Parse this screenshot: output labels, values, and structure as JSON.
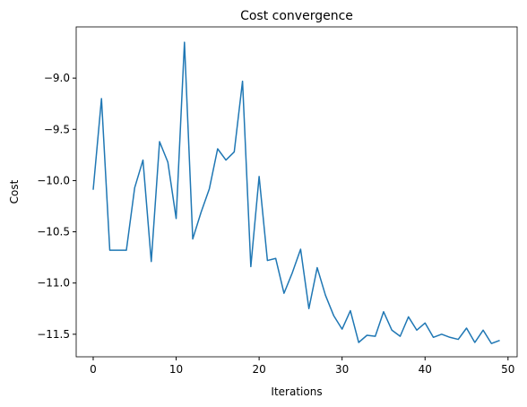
{
  "chart_data": {
    "type": "line",
    "title": "Cost convergence",
    "x_label": "Iterations",
    "y_label": "Cost",
    "x": [
      0,
      1,
      2,
      3,
      4,
      5,
      6,
      7,
      8,
      9,
      10,
      11,
      12,
      13,
      14,
      15,
      16,
      17,
      18,
      19,
      20,
      21,
      22,
      23,
      24,
      25,
      26,
      27,
      28,
      29,
      30,
      31,
      32,
      33,
      34,
      35,
      36,
      37,
      38,
      39,
      40,
      41,
      42,
      43,
      44,
      45,
      46,
      47,
      48,
      49
    ],
    "series": [
      {
        "name": "Cost",
        "color": "#1f77b4",
        "values": [
          -10.09,
          -9.2,
          -10.68,
          -10.68,
          -10.68,
          -10.07,
          -9.8,
          -10.79,
          -9.62,
          -9.82,
          -10.37,
          -8.65,
          -10.57,
          -10.31,
          -10.08,
          -9.69,
          -9.8,
          -9.72,
          -9.03,
          -10.84,
          -9.96,
          -10.78,
          -10.76,
          -11.1,
          -10.9,
          -10.67,
          -11.25,
          -10.85,
          -11.12,
          -11.32,
          -11.45,
          -11.27,
          -11.58,
          -11.51,
          -11.52,
          -11.28,
          -11.46,
          -11.52,
          -11.33,
          -11.46,
          -11.39,
          -11.53,
          -11.5,
          -11.53,
          -11.55,
          -11.44,
          -11.58,
          -11.46,
          -11.59,
          -11.56
        ]
      }
    ],
    "xlim": [
      -2.05,
      51.1
    ],
    "ylim": [
      -11.72,
      -8.5
    ],
    "xticks": [
      0,
      10,
      20,
      30,
      40,
      50
    ],
    "yticks": [
      {
        "value": -11.5,
        "label": "−11.5"
      },
      {
        "value": -11.0,
        "label": "−11.0"
      },
      {
        "value": -10.5,
        "label": "−10.5"
      },
      {
        "value": -10.0,
        "label": "−10.0"
      },
      {
        "value": -9.5,
        "label": "−9.5"
      },
      {
        "value": -9.0,
        "label": "−9.0"
      }
    ],
    "grid": false
  }
}
